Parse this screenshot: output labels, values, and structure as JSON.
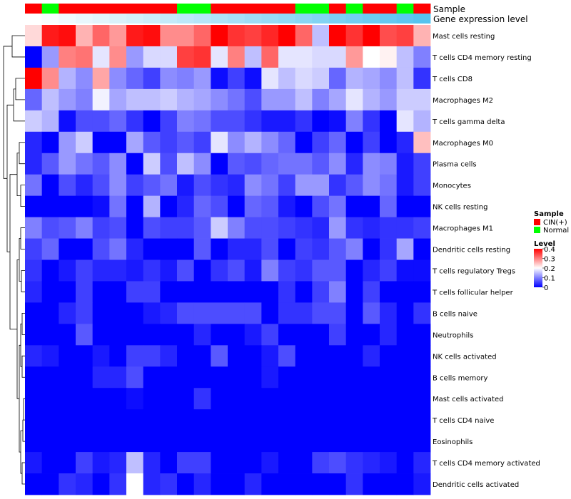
{
  "chart_data": {
    "type": "heatmap",
    "annotation_labels": [
      "Sample",
      "Gene expression level"
    ],
    "rows": [
      "Mast cells resting",
      "T cells CD4 memory resting",
      "T cells CD8",
      "Macrophages M2",
      "T cells gamma delta",
      "Macrophages M0",
      "Plasma cells",
      "Monocytes",
      "NK cells resting",
      "Macrophages M1",
      "Dendritic cells resting",
      "T cells regulatory  Tregs",
      "T cells follicular helper",
      "B cells naive",
      "Neutrophils",
      "NK cells activated",
      "B cells memory",
      "Mast cells activated",
      "T cells CD4 naive",
      "Eosinophils",
      "T cells CD4 memory activated",
      "Dendritic cells activated"
    ],
    "sample_groups": [
      "CIN(+)",
      "Normal",
      "CIN(+)",
      "CIN(+)",
      "CIN(+)",
      "CIN(+)",
      "CIN(+)",
      "CIN(+)",
      "CIN(+)",
      "Normal",
      "Normal",
      "CIN(+)",
      "CIN(+)",
      "CIN(+)",
      "CIN(+)",
      "CIN(+)",
      "Normal",
      "Normal",
      "CIN(+)",
      "Normal",
      "CIN(+)",
      "CIN(+)",
      "Normal",
      "CIN(+)"
    ],
    "expression_level": [
      0.0,
      0.04,
      0.09,
      0.13,
      0.17,
      0.22,
      0.26,
      0.3,
      0.35,
      0.39,
      0.43,
      0.48,
      0.52,
      0.57,
      0.61,
      0.65,
      0.7,
      0.74,
      0.78,
      0.83,
      0.87,
      0.91,
      0.96,
      1.0
    ],
    "values": [
      [
        0.23,
        0.38,
        0.39,
        0.26,
        0.32,
        0.28,
        0.38,
        0.39,
        0.29,
        0.29,
        0.32,
        0.4,
        0.36,
        0.35,
        0.37,
        0.4,
        0.32,
        0.15,
        0.4,
        0.36,
        0.4,
        0.34,
        0.35,
        0.26
      ],
      [
        0.0,
        0.12,
        0.3,
        0.31,
        0.18,
        0.29,
        0.12,
        0.17,
        0.17,
        0.35,
        0.36,
        0.18,
        0.3,
        0.15,
        0.32,
        0.18,
        0.18,
        0.17,
        0.17,
        0.28,
        0.2,
        0.21,
        0.15,
        0.1
      ],
      [
        0.4,
        0.29,
        0.14,
        0.11,
        0.27,
        0.11,
        0.08,
        0.05,
        0.11,
        0.1,
        0.12,
        0.01,
        0.05,
        0.01,
        0.18,
        0.15,
        0.17,
        0.16,
        0.08,
        0.14,
        0.13,
        0.11,
        0.15,
        0.04
      ],
      [
        0.08,
        0.15,
        0.12,
        0.1,
        0.19,
        0.13,
        0.15,
        0.15,
        0.16,
        0.14,
        0.13,
        0.11,
        0.09,
        0.06,
        0.12,
        0.12,
        0.15,
        0.1,
        0.13,
        0.18,
        0.14,
        0.12,
        0.16,
        0.16
      ],
      [
        0.16,
        0.14,
        0.01,
        0.06,
        0.06,
        0.08,
        0.04,
        0.0,
        0.05,
        0.1,
        0.09,
        0.06,
        0.06,
        0.04,
        0.02,
        0.02,
        0.04,
        0.0,
        0.01,
        0.1,
        0.04,
        0.0,
        0.18,
        0.14
      ],
      [
        0.03,
        0.0,
        0.12,
        0.16,
        0.0,
        0.0,
        0.13,
        0.07,
        0.05,
        0.07,
        0.05,
        0.18,
        0.11,
        0.14,
        0.11,
        0.08,
        0.0,
        0.05,
        0.08,
        0.0,
        0.05,
        0.0,
        0.03,
        0.25
      ],
      [
        0.03,
        0.07,
        0.12,
        0.09,
        0.07,
        0.11,
        0.0,
        0.16,
        0.06,
        0.15,
        0.11,
        0.0,
        0.07,
        0.06,
        0.08,
        0.09,
        0.09,
        0.07,
        0.11,
        0.03,
        0.11,
        0.1,
        0.02,
        0.05
      ],
      [
        0.09,
        0.0,
        0.06,
        0.03,
        0.06,
        0.11,
        0.05,
        0.07,
        0.09,
        0.02,
        0.06,
        0.04,
        0.03,
        0.11,
        0.09,
        0.05,
        0.12,
        0.12,
        0.04,
        0.07,
        0.11,
        0.09,
        0.02,
        0.05
      ],
      [
        0.0,
        0.0,
        0.0,
        0.0,
        0.01,
        0.09,
        0.0,
        0.14,
        0.0,
        0.03,
        0.08,
        0.06,
        0.0,
        0.08,
        0.07,
        0.02,
        0.0,
        0.06,
        0.09,
        0.0,
        0.0,
        0.08,
        0.0,
        0.0
      ],
      [
        0.1,
        0.06,
        0.07,
        0.1,
        0.05,
        0.06,
        0.0,
        0.06,
        0.05,
        0.05,
        0.07,
        0.16,
        0.1,
        0.06,
        0.06,
        0.05,
        0.04,
        0.03,
        0.12,
        0.04,
        0.03,
        0.04,
        0.04,
        0.05
      ],
      [
        0.05,
        0.08,
        0.0,
        0.0,
        0.06,
        0.09,
        0.03,
        0.0,
        0.0,
        0.0,
        0.07,
        0.0,
        0.03,
        0.03,
        0.06,
        0.0,
        0.05,
        0.04,
        0.07,
        0.1,
        0.0,
        0.04,
        0.13,
        0.0
      ],
      [
        0.04,
        0.0,
        0.02,
        0.05,
        0.03,
        0.03,
        0.02,
        0.04,
        0.02,
        0.06,
        0.0,
        0.04,
        0.06,
        0.02,
        0.1,
        0.05,
        0.04,
        0.07,
        0.07,
        0.0,
        0.03,
        0.05,
        0.01,
        0.01
      ],
      [
        0.03,
        0.0,
        0.0,
        0.05,
        0.0,
        0.0,
        0.05,
        0.05,
        0.0,
        0.0,
        0.0,
        0.0,
        0.0,
        0.0,
        0.0,
        0.04,
        0.0,
        0.05,
        0.1,
        0.0,
        0.05,
        0.0,
        0.0,
        0.0
      ],
      [
        0.0,
        0.0,
        0.03,
        0.05,
        0.0,
        0.0,
        0.0,
        0.02,
        0.03,
        0.06,
        0.06,
        0.06,
        0.06,
        0.06,
        0.0,
        0.04,
        0.04,
        0.06,
        0.06,
        0.0,
        0.07,
        0.03,
        0.0,
        0.04
      ],
      [
        0.0,
        0.0,
        0.0,
        0.07,
        0.0,
        0.0,
        0.0,
        0.0,
        0.0,
        0.0,
        0.03,
        0.0,
        0.0,
        0.02,
        0.05,
        0.0,
        0.0,
        0.0,
        0.05,
        0.0,
        0.0,
        0.03,
        0.0,
        0.0
      ],
      [
        0.03,
        0.02,
        0.0,
        0.0,
        0.02,
        0.0,
        0.05,
        0.05,
        0.03,
        0.0,
        0.0,
        0.07,
        0.0,
        0.0,
        0.02,
        0.06,
        0.0,
        0.0,
        0.0,
        0.0,
        0.03,
        0.0,
        0.0,
        0.0
      ],
      [
        0.0,
        0.0,
        0.0,
        0.0,
        0.03,
        0.03,
        0.06,
        0.0,
        0.0,
        0.0,
        0.0,
        0.0,
        0.0,
        0.0,
        0.02,
        0.0,
        0.0,
        0.0,
        0.0,
        0.0,
        0.0,
        0.0,
        0.0,
        0.0
      ],
      [
        0.0,
        0.0,
        0.0,
        0.0,
        0.0,
        0.0,
        0.01,
        0.0,
        0.0,
        0.0,
        0.04,
        0.0,
        0.0,
        0.0,
        0.0,
        0.0,
        0.0,
        0.0,
        0.0,
        0.0,
        0.0,
        0.0,
        0.0,
        0.0
      ],
      [
        0.0,
        0.0,
        0.0,
        0.0,
        0.0,
        0.0,
        0.0,
        0.0,
        0.0,
        0.0,
        0.0,
        0.0,
        0.0,
        0.0,
        0.0,
        0.0,
        0.0,
        0.0,
        0.0,
        0.0,
        0.0,
        0.0,
        0.0,
        0.0
      ],
      [
        0.0,
        0.0,
        0.0,
        0.0,
        0.0,
        0.0,
        0.0,
        0.0,
        0.0,
        0.0,
        0.0,
        0.0,
        0.0,
        0.0,
        0.0,
        0.0,
        0.0,
        0.0,
        0.0,
        0.0,
        0.0,
        0.0,
        0.0,
        0.0
      ],
      [
        0.02,
        0.0,
        0.0,
        0.05,
        0.02,
        0.03,
        0.15,
        0.03,
        0.0,
        0.05,
        0.05,
        0.0,
        0.0,
        0.0,
        0.02,
        0.0,
        0.0,
        0.05,
        0.06,
        0.04,
        0.03,
        0.02,
        0.0,
        0.03
      ],
      [
        0.0,
        0.0,
        0.04,
        0.03,
        0.0,
        0.04,
        0.2,
        0.03,
        0.04,
        0.0,
        0.03,
        0.0,
        0.0,
        0.03,
        0.0,
        0.0,
        0.0,
        0.0,
        0.0,
        0.04,
        0.0,
        0.0,
        0.0,
        0.02
      ]
    ],
    "legend": {
      "sample_title": "Sample",
      "sample_items": [
        {
          "label": "CIN(+)",
          "color": "#ff0000"
        },
        {
          "label": "Normal",
          "color": "#00ff00"
        }
      ],
      "level_title": "Level",
      "level_ticks": [
        0.4,
        0.3,
        0.2,
        0.1,
        0
      ],
      "placement": "right"
    },
    "value_range": [
      0,
      0.4
    ],
    "colors": {
      "low": "#0000ff",
      "mid": "#ffffff",
      "high": "#ff0000",
      "expression_low": "#ffffff",
      "expression_high": "#56c4ef"
    }
  }
}
